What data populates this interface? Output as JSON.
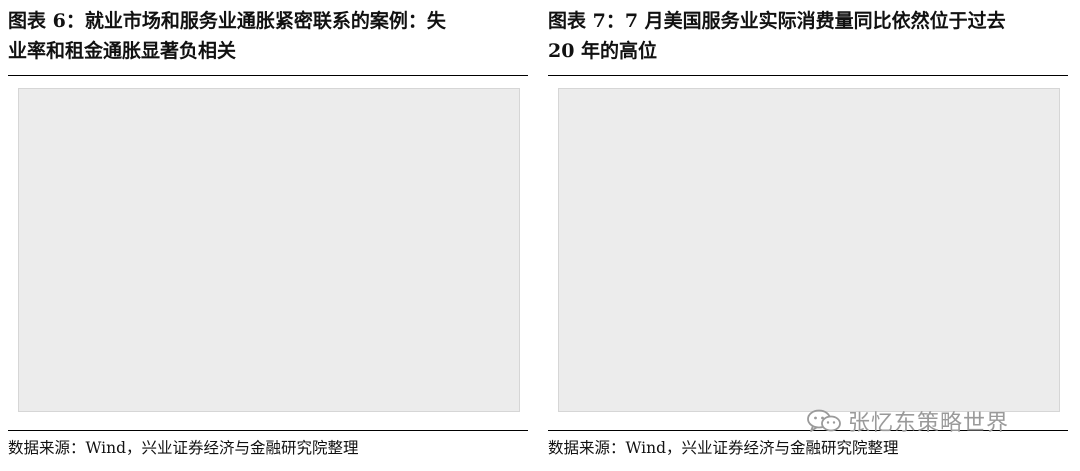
{
  "left_panel": {
    "title_line1": "图表 6：就业市场和服务业通胀紧密联系的案例：失",
    "title_line2": "业率和租金通胀显著负相关",
    "source": "数据来源：Wind，兴业证券经济与金融研究院整理"
  },
  "right_panel": {
    "title_line1": "图表 7：7 月美国服务业实际消费量同比依然位于过去",
    "title_line2": "20 年的高位",
    "source": "数据来源：Wind，兴业证券经济与金融研究院整理"
  },
  "watermark": {
    "text": "张忆东策略世界",
    "icon": "wechat-icon"
  }
}
